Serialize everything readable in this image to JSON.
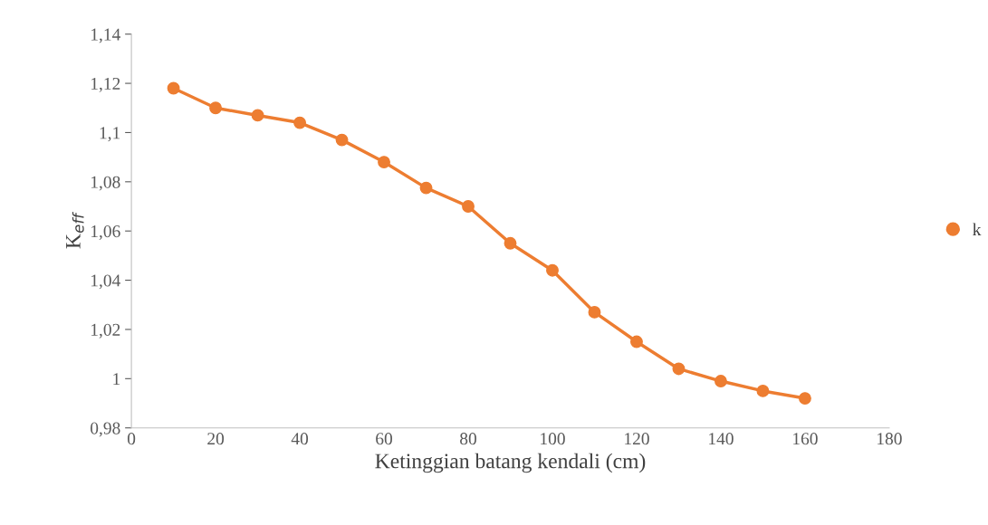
{
  "chart_data": {
    "type": "line",
    "xlabel": "Ketinggian batang kendali (cm)",
    "ylabel": "K$_{eff}$",
    "x": [
      10,
      20,
      30,
      40,
      50,
      60,
      70,
      80,
      90,
      100,
      110,
      120,
      130,
      140,
      150,
      160
    ],
    "series": [
      {
        "name": "k",
        "color": "#ed7d31",
        "values": [
          1.118,
          1.11,
          1.107,
          1.104,
          1.097,
          1.088,
          1.0775,
          1.07,
          1.055,
          1.044,
          1.027,
          1.015,
          1.004,
          0.999,
          0.995,
          0.992
        ]
      }
    ],
    "xlim": [
      0,
      180
    ],
    "xticks": [
      0,
      20,
      40,
      60,
      80,
      100,
      120,
      140,
      160,
      180
    ],
    "ylim": [
      0.98,
      1.14
    ],
    "yticks": [
      {
        "value": 0.98,
        "label": "0,98"
      },
      {
        "value": 1.0,
        "label": "1"
      },
      {
        "value": 1.02,
        "label": "1,02"
      },
      {
        "value": 1.04,
        "label": "1,04"
      },
      {
        "value": 1.06,
        "label": "1,06"
      },
      {
        "value": 1.08,
        "label": "1,08"
      },
      {
        "value": 1.1,
        "label": "1,1"
      },
      {
        "value": 1.12,
        "label": "1,12"
      },
      {
        "value": 1.14,
        "label": "1,14"
      }
    ],
    "grid": false,
    "legend": "right",
    "marker": "circle",
    "line_style": "solid"
  }
}
